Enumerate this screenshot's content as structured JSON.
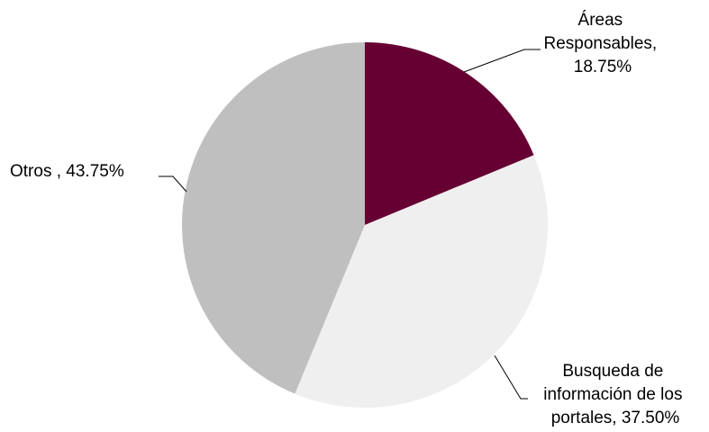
{
  "chart_data": {
    "type": "pie",
    "slices": [
      {
        "name": "Áreas Responsables",
        "value": 18.75,
        "color": "#660033",
        "label_lines": [
          "Áreas",
          "Responsables,",
          "18.75%"
        ]
      },
      {
        "name": "Busqueda de información de los portales",
        "value": 37.5,
        "color": "#efefef",
        "label_lines": [
          "Busqueda de",
          "información de los",
          "portales, 37.50%"
        ]
      },
      {
        "name": "Otros",
        "value": 43.75,
        "color": "#bfbfbf",
        "label_lines": [
          "Otros , 43.75%"
        ]
      }
    ],
    "start_angle": "12 o'clock",
    "direction": "clockwise",
    "legend": "none"
  }
}
